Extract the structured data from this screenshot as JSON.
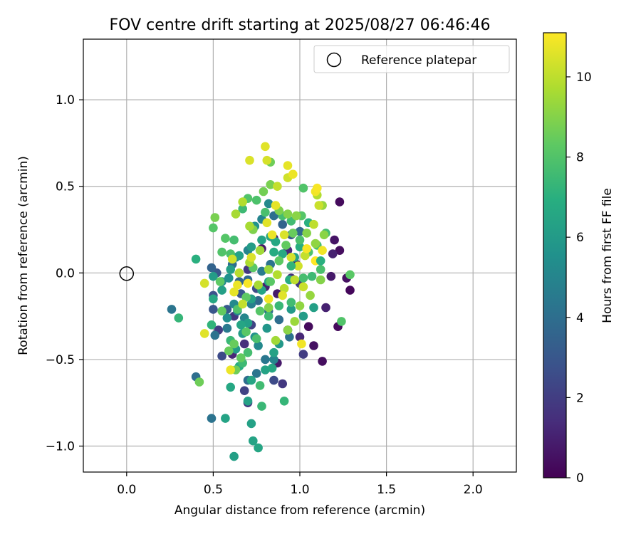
{
  "chart_data": {
    "type": "scatter",
    "title": "FOV centre drift starting at 2025/08/27 06:46:46",
    "xlabel": "Angular distance from reference (arcmin)",
    "ylabel": "Rotation from reference (arcmin)",
    "xlim": [
      -0.25,
      2.25
    ],
    "ylim": [
      -1.15,
      1.35
    ],
    "xticks": [
      0.0,
      0.5,
      1.0,
      1.5,
      2.0
    ],
    "xtick_labels": [
      "0.0",
      "0.5",
      "1.0",
      "1.5",
      "2.0"
    ],
    "yticks": [
      -1.0,
      -0.5,
      0.0,
      0.5,
      1.0
    ],
    "ytick_labels": [
      "−1.0",
      "−0.5",
      "0.0",
      "0.5",
      "1.0"
    ],
    "grid": true,
    "legend": {
      "position": "top-right",
      "entries": [
        "Reference platepar"
      ]
    },
    "reference_point": {
      "x": 0.0,
      "y": 0.0,
      "label": "Reference platepar"
    },
    "colorbar": {
      "label": "Hours from first FF file",
      "colormap": "viridis",
      "range": [
        0,
        11.1
      ],
      "ticks": [
        0,
        2,
        4,
        6,
        8,
        10
      ],
      "tick_labels": [
        "0",
        "2",
        "4",
        "6",
        "8",
        "10"
      ]
    },
    "points": [
      [
        1.29,
        -0.1,
        0.2
      ],
      [
        1.22,
        -0.31,
        0.3
      ],
      [
        1.13,
        -0.51,
        0.4
      ],
      [
        1.08,
        -0.42,
        0.5
      ],
      [
        1.05,
        -0.31,
        0.3
      ],
      [
        1.27,
        -0.03,
        0.5
      ],
      [
        1.2,
        0.19,
        0.6
      ],
      [
        1.23,
        0.13,
        0.4
      ],
      [
        1.23,
        0.41,
        0.3
      ],
      [
        1.19,
        0.11,
        1.0
      ],
      [
        1.15,
        -0.2,
        1.0
      ],
      [
        1.18,
        -0.02,
        0.8
      ],
      [
        1.02,
        -0.47,
        2.0
      ],
      [
        1.0,
        -0.37,
        1.2
      ],
      [
        0.93,
        -0.33,
        1.5
      ],
      [
        0.9,
        -0.64,
        1.8
      ],
      [
        0.87,
        -0.52,
        0.8
      ],
      [
        0.85,
        -0.62,
        2.5
      ],
      [
        0.68,
        -0.68,
        2.2
      ],
      [
        0.7,
        -0.75,
        1.8
      ],
      [
        0.68,
        -0.41,
        1.5
      ],
      [
        0.61,
        -0.47,
        1.2
      ],
      [
        0.55,
        -0.48,
        2.5
      ],
      [
        0.53,
        -0.33,
        2.0
      ],
      [
        0.62,
        -0.25,
        1.8
      ],
      [
        0.72,
        -0.3,
        2.2
      ],
      [
        0.8,
        -0.08,
        1.0
      ],
      [
        0.87,
        -0.12,
        0.8
      ],
      [
        0.95,
        -0.03,
        1.5
      ],
      [
        1.0,
        -0.06,
        1.8
      ],
      [
        0.98,
        0.05,
        0.9
      ],
      [
        0.93,
        0.13,
        1.3
      ],
      [
        0.85,
        0.2,
        1.0
      ],
      [
        0.78,
        0.14,
        0.8
      ],
      [
        0.7,
        0.02,
        1.8
      ],
      [
        0.75,
        -0.09,
        2.6
      ],
      [
        0.66,
        -0.12,
        3.0
      ],
      [
        0.58,
        -0.21,
        3.1
      ],
      [
        0.5,
        -0.21,
        3.0
      ],
      [
        0.5,
        -0.13,
        2.8
      ],
      [
        0.52,
        0.0,
        3.0
      ],
      [
        0.49,
        0.03,
        3.5
      ],
      [
        0.61,
        0.05,
        4.0
      ],
      [
        0.65,
        -0.05,
        3.6
      ],
      [
        0.7,
        -0.04,
        3.8
      ],
      [
        0.76,
        -0.16,
        3.8
      ],
      [
        0.82,
        -0.22,
        3.9
      ],
      [
        0.88,
        -0.27,
        4.0
      ],
      [
        0.94,
        -0.37,
        4.1
      ],
      [
        0.51,
        -0.36,
        4.2
      ],
      [
        0.58,
        -0.32,
        4.5
      ],
      [
        0.26,
        -0.21,
        4.3
      ],
      [
        0.4,
        -0.6,
        4.0
      ],
      [
        0.49,
        -0.84,
        4.2
      ],
      [
        0.7,
        -0.62,
        4.0
      ],
      [
        0.75,
        -0.58,
        4.3
      ],
      [
        0.8,
        -0.5,
        4.4
      ],
      [
        0.85,
        -0.5,
        5.0
      ],
      [
        0.76,
        -0.42,
        5.2
      ],
      [
        0.68,
        -0.26,
        5.0
      ],
      [
        0.62,
        -0.18,
        5.2
      ],
      [
        0.55,
        -0.05,
        5.3
      ],
      [
        0.59,
        -0.03,
        5.5
      ],
      [
        0.63,
        0.09,
        5.4
      ],
      [
        0.7,
        0.13,
        5.0
      ],
      [
        0.74,
        0.27,
        5.6
      ],
      [
        0.78,
        0.31,
        5.0
      ],
      [
        0.82,
        0.4,
        5.2
      ],
      [
        0.85,
        0.33,
        4.0
      ],
      [
        0.9,
        0.28,
        3.5
      ],
      [
        0.95,
        0.22,
        3.0
      ],
      [
        1.0,
        0.24,
        3.8
      ],
      [
        0.83,
        0.05,
        4.2
      ],
      [
        0.78,
        0.01,
        4.6
      ],
      [
        0.72,
        -0.18,
        4.8
      ],
      [
        0.64,
        -0.22,
        5.0
      ],
      [
        0.58,
        -0.26,
        5.5
      ],
      [
        0.74,
        -0.37,
        5.6
      ],
      [
        0.81,
        -0.32,
        5.8
      ],
      [
        0.88,
        -0.41,
        5.9
      ],
      [
        0.95,
        -0.21,
        6.0
      ],
      [
        1.02,
        -0.25,
        6.1
      ],
      [
        1.08,
        -0.2,
        6.2
      ],
      [
        0.62,
        -1.06,
        6.2
      ],
      [
        0.72,
        -0.87,
        6.3
      ],
      [
        0.73,
        -0.97,
        6.4
      ],
      [
        0.76,
        -1.01,
        6.5
      ],
      [
        0.57,
        -0.84,
        6.4
      ],
      [
        0.6,
        -0.66,
        6.6
      ],
      [
        0.7,
        -0.74,
        6.3
      ],
      [
        0.72,
        -0.62,
        6.5
      ],
      [
        0.8,
        -0.56,
        6.4
      ],
      [
        0.84,
        -0.55,
        6.6
      ],
      [
        0.85,
        -0.46,
        6.3
      ],
      [
        0.65,
        -0.54,
        6.8
      ],
      [
        0.63,
        -0.44,
        6.0
      ],
      [
        0.67,
        -0.35,
        6.1
      ],
      [
        0.7,
        -0.29,
        6.2
      ],
      [
        0.72,
        -0.15,
        6.3
      ],
      [
        0.78,
        -0.1,
        6.4
      ],
      [
        0.82,
        -0.05,
        6.5
      ],
      [
        0.5,
        -0.15,
        6.6
      ],
      [
        0.55,
        -0.1,
        6.2
      ],
      [
        0.5,
        -0.02,
        6.1
      ],
      [
        0.6,
        0.02,
        6.2
      ],
      [
        0.65,
        0.1,
        6.3
      ],
      [
        0.72,
        0.15,
        6.1
      ],
      [
        0.78,
        0.19,
        6.4
      ],
      [
        0.83,
        0.21,
        6.5
      ],
      [
        0.86,
        0.18,
        6.6
      ],
      [
        0.9,
        0.11,
        6.7
      ],
      [
        0.94,
        -0.04,
        6.8
      ],
      [
        0.97,
        0.09,
        6.4
      ],
      [
        1.0,
        0.15,
        6.9
      ],
      [
        1.05,
        0.29,
        7.0
      ],
      [
        0.4,
        0.08,
        7.0
      ],
      [
        0.49,
        -0.3,
        7.2
      ],
      [
        0.3,
        -0.26,
        7.3
      ],
      [
        0.6,
        -0.39,
        7.4
      ],
      [
        0.67,
        -0.52,
        7.5
      ],
      [
        0.78,
        -0.77,
        7.4
      ],
      [
        0.91,
        -0.74,
        7.3
      ],
      [
        0.77,
        -0.65,
        7.6
      ],
      [
        0.7,
        -0.46,
        7.7
      ],
      [
        0.75,
        -0.38,
        7.8
      ],
      [
        0.82,
        -0.25,
        7.5
      ],
      [
        0.88,
        -0.19,
        7.4
      ],
      [
        0.95,
        -0.17,
        7.6
      ],
      [
        1.02,
        -0.03,
        7.7
      ],
      [
        1.07,
        -0.02,
        7.5
      ],
      [
        1.12,
        0.02,
        7.8
      ],
      [
        1.15,
        0.23,
        7.6
      ],
      [
        1.1,
        0.16,
        7.7
      ],
      [
        1.05,
        0.12,
        7.9
      ],
      [
        1.0,
        0.19,
        7.8
      ],
      [
        0.95,
        0.3,
        7.6
      ],
      [
        0.9,
        0.33,
        7.7
      ],
      [
        0.8,
        0.35,
        7.8
      ],
      [
        0.75,
        0.42,
        7.9
      ],
      [
        0.7,
        0.43,
        8.0
      ],
      [
        0.67,
        0.37,
        7.5
      ],
      [
        0.62,
        0.19,
        7.7
      ],
      [
        0.6,
        0.11,
        7.9
      ],
      [
        0.55,
        0.12,
        8.0
      ],
      [
        0.5,
        0.26,
        8.1
      ],
      [
        1.24,
        -0.28,
        8.0
      ],
      [
        1.29,
        -0.01,
        8.2
      ],
      [
        1.01,
        0.33,
        8.1
      ],
      [
        1.02,
        0.49,
        8.0
      ],
      [
        0.73,
        0.03,
        8.2
      ],
      [
        0.69,
        -0.14,
        8.3
      ],
      [
        0.64,
        -0.21,
        8.0
      ],
      [
        0.77,
        -0.22,
        8.1
      ],
      [
        0.83,
        -0.05,
        8.2
      ],
      [
        0.88,
        0.07,
        8.3
      ],
      [
        0.92,
        0.16,
        8.4
      ],
      [
        0.96,
        0.23,
        8.5
      ],
      [
        0.66,
        -0.49,
        8.4
      ],
      [
        0.63,
        -0.56,
        8.6
      ],
      [
        0.69,
        -0.34,
        8.2
      ],
      [
        0.62,
        -0.41,
        8.5
      ],
      [
        0.42,
        -0.63,
        8.6
      ],
      [
        0.51,
        0.32,
        8.8
      ],
      [
        0.73,
        0.25,
        8.9
      ],
      [
        0.79,
        0.47,
        8.7
      ],
      [
        0.83,
        0.64,
        8.6
      ],
      [
        0.83,
        0.51,
        8.8
      ],
      [
        0.88,
        0.36,
        8.9
      ],
      [
        0.93,
        0.34,
        9.0
      ],
      [
        0.98,
        0.33,
        9.1
      ],
      [
        1.04,
        0.23,
        9.0
      ],
      [
        1.09,
        0.17,
        9.2
      ],
      [
        1.13,
        0.39,
        9.3
      ],
      [
        1.14,
        0.22,
        9.1
      ],
      [
        1.12,
        -0.04,
        9.0
      ],
      [
        1.06,
        -0.13,
        9.3
      ],
      [
        1.0,
        -0.19,
        9.2
      ],
      [
        0.97,
        -0.28,
        9.4
      ],
      [
        0.93,
        -0.33,
        9.1
      ],
      [
        0.86,
        -0.39,
        9.5
      ],
      [
        0.82,
        -0.2,
        9.0
      ],
      [
        0.76,
        -0.07,
        9.6
      ],
      [
        0.71,
        0.06,
        9.7
      ],
      [
        0.67,
        0.41,
        9.8
      ],
      [
        0.71,
        0.27,
        9.6
      ],
      [
        0.77,
        0.13,
        9.5
      ],
      [
        0.82,
        0.02,
        9.4
      ],
      [
        0.87,
        -0.01,
        9.8
      ],
      [
        0.91,
        -0.09,
        9.9
      ],
      [
        0.97,
        -0.04,
        10.0
      ],
      [
        1.03,
        0.1,
        10.1
      ],
      [
        1.08,
        0.28,
        10.0
      ],
      [
        1.1,
        0.45,
        9.8
      ],
      [
        1.11,
        0.39,
        10.2
      ],
      [
        0.93,
        0.55,
        10.3
      ],
      [
        0.87,
        0.5,
        10.1
      ],
      [
        0.81,
        0.65,
        10.4
      ],
      [
        0.71,
        0.65,
        10.5
      ],
      [
        0.8,
        0.73,
        10.6
      ],
      [
        0.93,
        0.62,
        10.7
      ],
      [
        0.96,
        0.57,
        10.8
      ],
      [
        1.09,
        0.47,
        10.9
      ],
      [
        1.1,
        0.49,
        11.0
      ],
      [
        1.04,
        0.14,
        11.0
      ],
      [
        1.09,
        0.07,
        11.1
      ],
      [
        1.13,
        0.13,
        10.9
      ],
      [
        0.86,
        0.39,
        10.7
      ],
      [
        0.81,
        0.29,
        10.6
      ],
      [
        0.84,
        0.22,
        10.8
      ],
      [
        0.91,
        0.22,
        10.5
      ],
      [
        0.95,
        0.09,
        10.4
      ],
      [
        0.99,
        0.04,
        10.3
      ],
      [
        1.02,
        -0.08,
        10.2
      ],
      [
        0.9,
        -0.13,
        10.6
      ],
      [
        0.82,
        -0.15,
        10.9
      ],
      [
        0.7,
        -0.06,
        11.0
      ],
      [
        0.64,
        -0.07,
        10.8
      ],
      [
        0.62,
        -0.11,
        10.7
      ],
      [
        0.6,
        -0.56,
        10.8
      ],
      [
        0.65,
        0.0,
        9.9
      ],
      [
        0.45,
        -0.06,
        10.4
      ],
      [
        0.45,
        -0.35,
        10.6
      ],
      [
        0.61,
        0.08,
        10.3
      ],
      [
        0.67,
        -0.18,
        10.1
      ],
      [
        1.01,
        -0.41,
        10.9
      ],
      [
        0.72,
        0.09,
        10.5
      ],
      [
        0.63,
        0.34,
        9.6
      ],
      [
        0.57,
        0.2,
        8.1
      ],
      [
        0.54,
        -0.05,
        8.3
      ],
      [
        0.55,
        -0.22,
        8.4
      ],
      [
        0.59,
        -0.45,
        8.5
      ],
      [
        0.66,
        -0.3,
        6.5
      ],
      [
        0.85,
        0.12,
        6.8
      ],
      [
        0.95,
        0.04,
        7.2
      ],
      [
        1.12,
        0.07,
        7.0
      ]
    ]
  }
}
